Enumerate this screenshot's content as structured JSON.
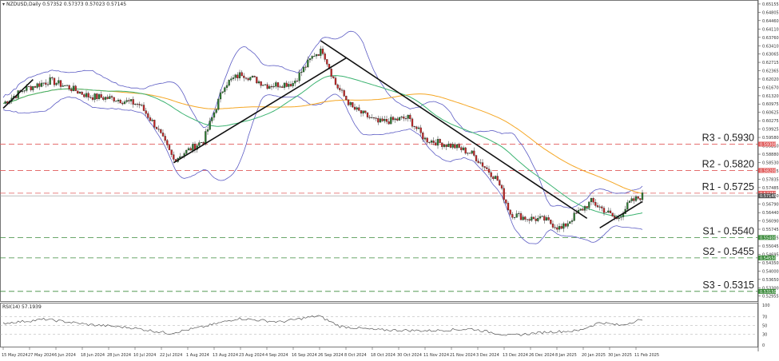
{
  "header": {
    "symbol": "NZDUSD,Daily",
    "ohlc": "0.57352 0.57373 0.57023 0.57145"
  },
  "rsi_header": "RSI(14) 57.1939",
  "colors": {
    "bull": "#2e7d32",
    "bear": "#c62828",
    "bollinger": "#5c5cc4",
    "ma_orange": "#f5a623",
    "ma_green": "#3cb371",
    "resistance": "#e05a5a",
    "support": "#3a8a3a",
    "rsi": "#555555"
  },
  "chart_data": {
    "type": "candlestick",
    "ylim": [
      0.5271,
      0.6532
    ],
    "yticks": [
      "0.65510",
      "0.65155",
      "0.64805",
      "0.64460",
      "0.64110",
      "0.63760",
      "0.63410",
      "0.63065",
      "0.62715",
      "0.62365",
      "0.62020",
      "0.61670",
      "0.61320",
      "0.60975",
      "0.60625",
      "0.60275",
      "0.59925",
      "0.59580",
      "0.59230",
      "0.58880",
      "0.58530",
      "0.58185",
      "0.57835",
      "0.57485",
      "0.57140",
      "0.56790",
      "0.56440",
      "0.56090",
      "0.55745",
      "0.55395",
      "0.55045",
      "0.54695",
      "0.54350",
      "0.54000",
      "0.53650",
      "0.53300",
      "0.52955",
      "0.52605"
    ],
    "xticks": [
      "15 May 2024",
      "27 May 2024",
      "6 Jun 2024",
      "18 Jun 2024",
      "28 Jun 2024",
      "10 Jul 2024",
      "22 Jul 2024",
      "1 Aug 2024",
      "13 Aug 2024",
      "23 Aug 2024",
      "4 Sep 2024",
      "16 Sep 2024",
      "26 Sep 2024",
      "8 Oct 2024",
      "18 Oct 2024",
      "30 Oct 2024",
      "11 Nov 2024",
      "21 Nov 2024",
      "3 Dec 2024",
      "13 Dec 2024",
      "26 Dec 2024",
      "8 Jan 2025",
      "20 Jan 2025",
      "30 Jan 2025",
      "11 Feb 2025"
    ],
    "current_price": "0.57145",
    "levels": [
      {
        "label": "R3 - 0.5930",
        "price": 0.593,
        "kind": "resistance",
        "tag": "0.59300"
      },
      {
        "label": "R2 - 0.5820",
        "price": 0.582,
        "kind": "resistance",
        "tag": "0.58200"
      },
      {
        "label": "R1 - 0.5725",
        "price": 0.5725,
        "kind": "resistance",
        "tag": "0.57250"
      },
      {
        "label": "S1 - 0.5540",
        "price": 0.554,
        "kind": "support",
        "tag": "0.55400"
      },
      {
        "label": "S2 - 0.5455",
        "price": 0.5455,
        "kind": "support",
        "tag": "0.54550"
      },
      {
        "label": "S3 - 0.5315",
        "price": 0.5315,
        "kind": "support",
        "tag": "0.53150"
      }
    ],
    "trendlines": [
      {
        "from": [
          0,
          0.608
        ],
        "to": [
          14,
          0.62
        ]
      },
      {
        "from": [
          80,
          0.5852
        ],
        "to": [
          161,
          0.629
        ]
      },
      {
        "from": [
          149,
          0.6362
        ],
        "to": [
          274,
          0.562
        ]
      },
      {
        "from": [
          280,
          0.558
        ],
        "to": [
          300,
          0.569
        ]
      }
    ],
    "anchors": [
      [
        0,
        0.61
      ],
      [
        10,
        0.616
      ],
      [
        22,
        0.6195
      ],
      [
        30,
        0.617
      ],
      [
        40,
        0.613
      ],
      [
        52,
        0.612
      ],
      [
        64,
        0.6095
      ],
      [
        72,
        0.6
      ],
      [
        80,
        0.5865
      ],
      [
        94,
        0.5945
      ],
      [
        104,
        0.618
      ],
      [
        112,
        0.6225
      ],
      [
        124,
        0.6175
      ],
      [
        136,
        0.6185
      ],
      [
        146,
        0.6305
      ],
      [
        150,
        0.632
      ],
      [
        156,
        0.618
      ],
      [
        164,
        0.608
      ],
      [
        176,
        0.602
      ],
      [
        190,
        0.604
      ],
      [
        198,
        0.595
      ],
      [
        212,
        0.592
      ],
      [
        220,
        0.589
      ],
      [
        232,
        0.578
      ],
      [
        238,
        0.564
      ],
      [
        246,
        0.562
      ],
      [
        254,
        0.5615
      ],
      [
        262,
        0.5575
      ],
      [
        268,
        0.563
      ],
      [
        276,
        0.569
      ],
      [
        282,
        0.5655
      ],
      [
        288,
        0.5615
      ],
      [
        294,
        0.5685
      ],
      [
        300,
        0.5715
      ]
    ],
    "rsi": {
      "ylim": [
        0,
        100
      ],
      "yticks": [
        "100",
        "70",
        "50",
        "30",
        "0"
      ],
      "anchors": [
        [
          0,
          55
        ],
        [
          20,
          64
        ],
        [
          40,
          52
        ],
        [
          60,
          45
        ],
        [
          78,
          32
        ],
        [
          95,
          48
        ],
        [
          110,
          66
        ],
        [
          130,
          58
        ],
        [
          148,
          72
        ],
        [
          158,
          48
        ],
        [
          175,
          40
        ],
        [
          200,
          38
        ],
        [
          220,
          42
        ],
        [
          238,
          27
        ],
        [
          255,
          35
        ],
        [
          270,
          38
        ],
        [
          280,
          57
        ],
        [
          290,
          50
        ],
        [
          298,
          62
        ],
        [
          300,
          60
        ]
      ]
    }
  }
}
